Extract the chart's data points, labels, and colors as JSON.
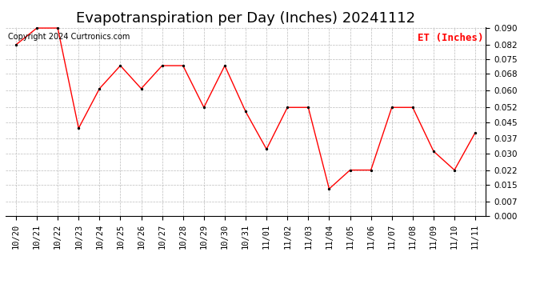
{
  "title": "Evapotranspiration per Day (Inches) 20241112",
  "legend_label": "ET (Inches)",
  "copyright_text": "Copyright 2024 Curtronics.com",
  "line_color": "red",
  "marker_color": "black",
  "background_color": "#ffffff",
  "grid_color": "#bbbbbb",
  "dates": [
    "10/20",
    "10/21",
    "10/22",
    "10/23",
    "10/24",
    "10/25",
    "10/26",
    "10/27",
    "10/28",
    "10/29",
    "10/30",
    "10/31",
    "11/01",
    "11/02",
    "11/03",
    "11/04",
    "11/05",
    "11/06",
    "11/07",
    "11/08",
    "11/09",
    "11/10",
    "11/11"
  ],
  "values": [
    0.082,
    0.09,
    0.09,
    0.042,
    0.061,
    0.072,
    0.061,
    0.072,
    0.072,
    0.052,
    0.072,
    0.05,
    0.032,
    0.052,
    0.052,
    0.013,
    0.022,
    0.022,
    0.052,
    0.052,
    0.031,
    0.022,
    0.04
  ],
  "ylim": [
    0.0,
    0.09
  ],
  "yticks": [
    0.0,
    0.007,
    0.015,
    0.022,
    0.03,
    0.037,
    0.045,
    0.052,
    0.06,
    0.068,
    0.075,
    0.082,
    0.09
  ],
  "title_fontsize": 13,
  "legend_fontsize": 9,
  "copyright_fontsize": 7,
  "tick_fontsize": 7.5
}
